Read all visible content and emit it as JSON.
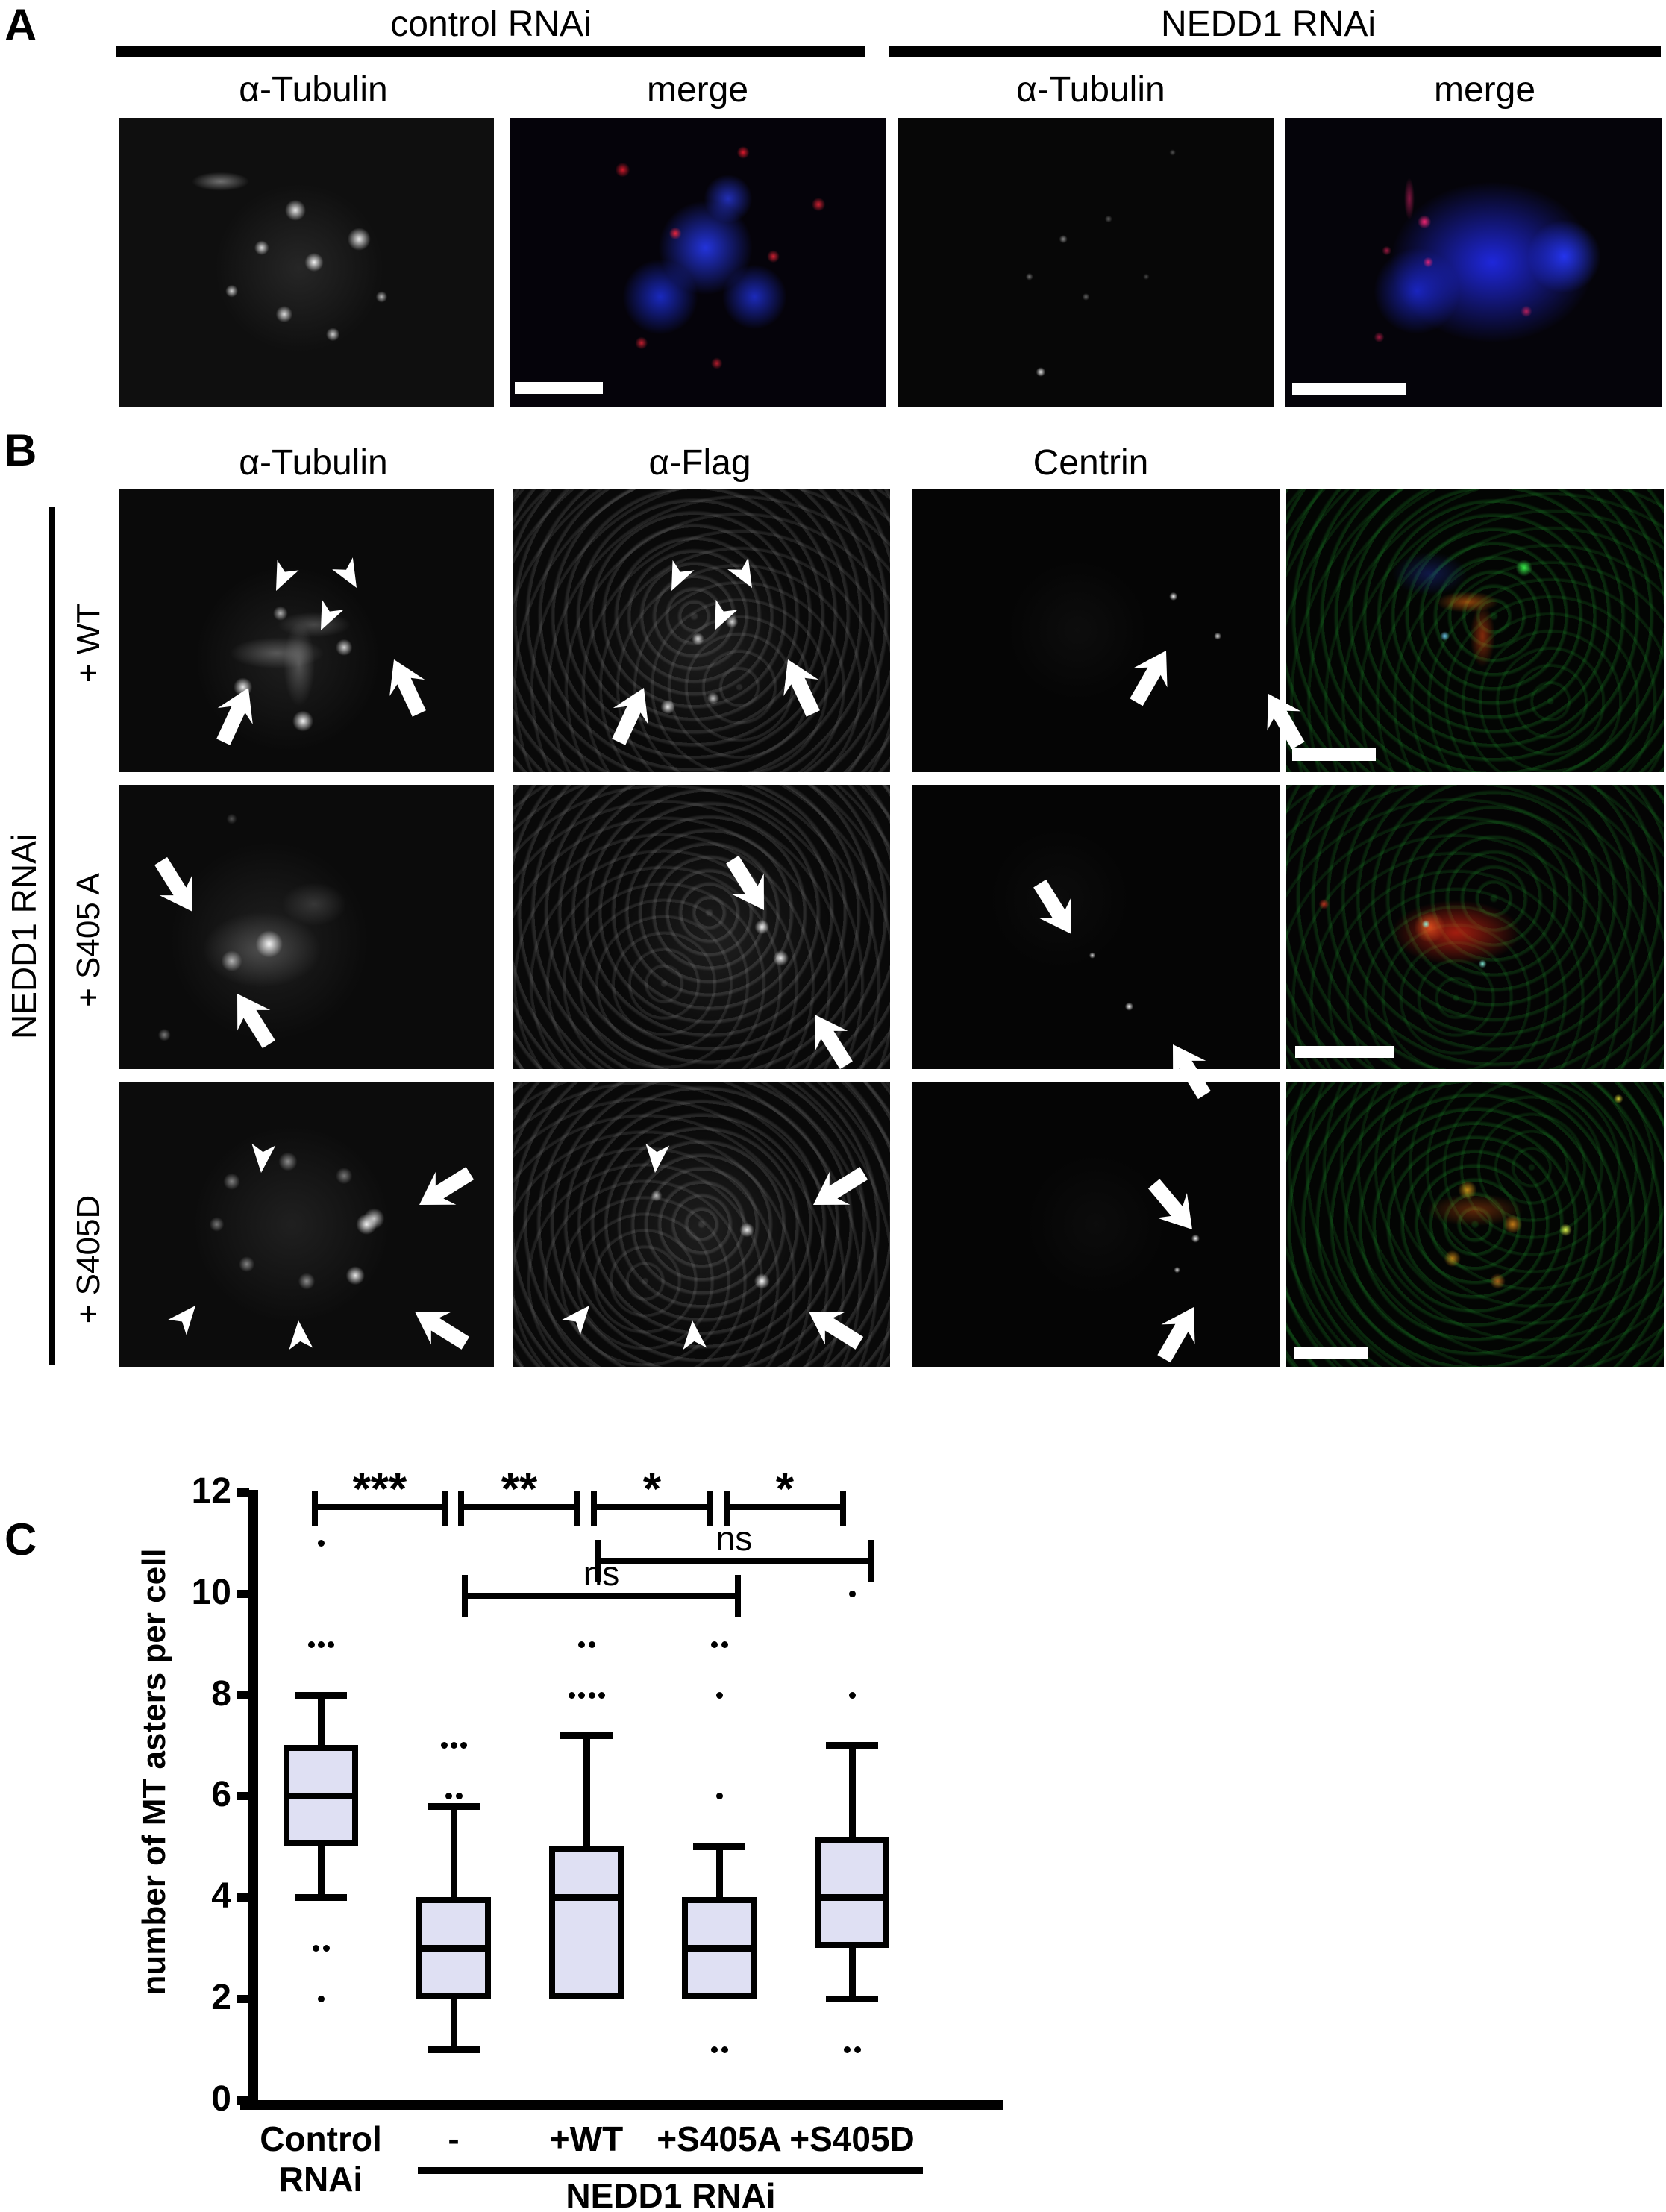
{
  "panels": {
    "a_label": "A",
    "b_label": "B",
    "c_label": "C"
  },
  "panel_a": {
    "group_headers": [
      {
        "label": "control RNAi"
      },
      {
        "label": "NEDD1 RNAi"
      }
    ],
    "column_labels": [
      "α-Tubulin",
      "merge",
      "α-Tubulin",
      "merge"
    ]
  },
  "panel_b": {
    "column_labels": [
      "α-Tubulin",
      "α-Flag",
      "Centrin"
    ],
    "side_label": "NEDD1 RNAi",
    "row_labels": [
      "+ WT",
      "+ S405 A",
      "+ S405D"
    ]
  },
  "chart_data": {
    "type": "box",
    "title": "",
    "xlabel": "",
    "ylabel": "number of MT asters per cell",
    "ylim": [
      0,
      12
    ],
    "yticks": [
      0,
      2,
      4,
      6,
      8,
      10,
      12
    ],
    "grid": false,
    "box_fill": "#dfe0f3",
    "categories": [
      "Control RNAi",
      "-",
      "+WT",
      "+S405A",
      "+S405D"
    ],
    "x_span_label": {
      "label": "NEDD1 RNAi",
      "from": 1,
      "to": 4
    },
    "boxes": [
      {
        "category": "Control RNAi",
        "whisker_low": 4,
        "q1": 5,
        "median": 6,
        "q3": 7,
        "whisker_high": 8,
        "outliers": [
          {
            "value": 11,
            "count": 1
          },
          {
            "value": 9,
            "count": 3
          },
          {
            "value": 3,
            "count": 2
          },
          {
            "value": 2,
            "count": 1
          }
        ]
      },
      {
        "category": "-",
        "whisker_low": 1,
        "q1": 2,
        "median": 3,
        "q3": 4,
        "whisker_high": 5.8,
        "outliers": [
          {
            "value": 7,
            "count": 3
          },
          {
            "value": 6,
            "count": 2
          }
        ]
      },
      {
        "category": "+WT",
        "whisker_low": 2,
        "q1": 2,
        "median": 4,
        "q3": 5,
        "whisker_high": 7.2,
        "outliers": [
          {
            "value": 9,
            "count": 2
          },
          {
            "value": 8,
            "count": 4
          }
        ]
      },
      {
        "category": "+S405A",
        "whisker_low": 2,
        "q1": 2,
        "median": 3,
        "q3": 4,
        "whisker_high": 5,
        "outliers": [
          {
            "value": 9,
            "count": 2
          },
          {
            "value": 8,
            "count": 1
          },
          {
            "value": 6,
            "count": 1
          },
          {
            "value": 1,
            "count": 2
          }
        ]
      },
      {
        "category": "+S405D",
        "whisker_low": 2,
        "q1": 3,
        "median": 4,
        "q3": 5.2,
        "whisker_high": 7,
        "outliers": [
          {
            "value": 10,
            "count": 1
          },
          {
            "value": 8,
            "count": 1
          },
          {
            "value": 1,
            "count": 2
          }
        ]
      }
    ],
    "significance": [
      {
        "from": 0,
        "to": 1,
        "label": "***",
        "level": 11.7
      },
      {
        "from": 1,
        "to": 2,
        "label": "**",
        "level": 11.7
      },
      {
        "from": 2,
        "to": 3,
        "label": "*",
        "level": 11.7
      },
      {
        "from": 3,
        "to": 4,
        "label": "*",
        "level": 11.7
      },
      {
        "from": 2,
        "to": 4,
        "label": "ns",
        "level": 10.65
      },
      {
        "from": 1,
        "to": 3,
        "label": "ns",
        "level": 9.95
      }
    ]
  }
}
